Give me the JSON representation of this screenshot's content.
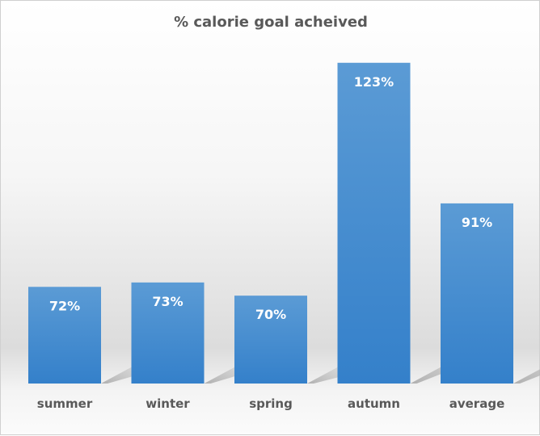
{
  "chart_data": {
    "type": "bar",
    "title": "% calorie goal acheived",
    "categories": [
      "summer",
      "winter",
      "spring",
      "autumn",
      "average"
    ],
    "values": [
      72,
      73,
      70,
      123,
      91
    ],
    "data_labels": [
      "72%",
      "73%",
      "70%",
      "123%",
      "91%"
    ],
    "xlabel": "",
    "ylabel": "",
    "ylim": [
      50,
      127
    ],
    "grid": false,
    "legend": "none",
    "bar_color": "#3a85cc"
  }
}
